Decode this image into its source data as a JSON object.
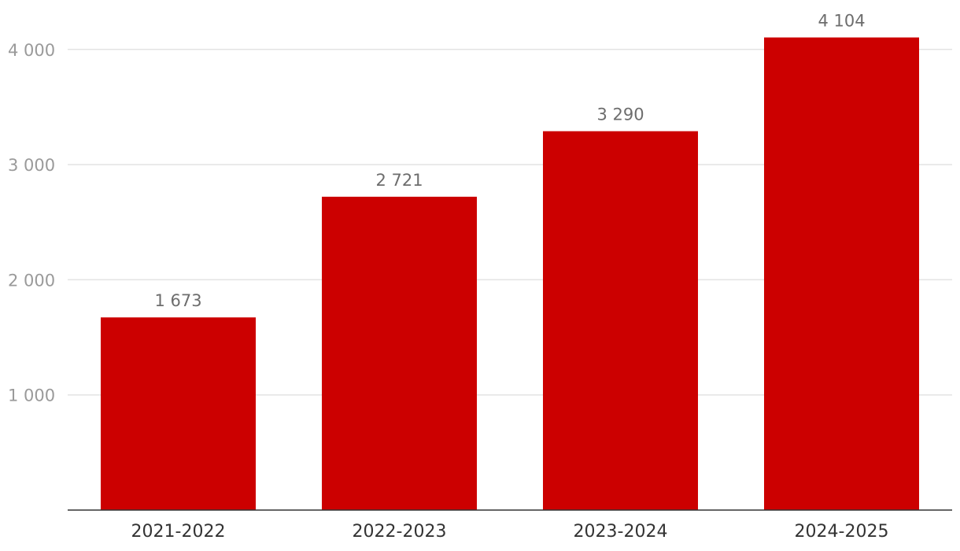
{
  "chart_data": {
    "type": "bar",
    "categories": [
      "2021-2022",
      "2022-2023",
      "2023-2024",
      "2024-2025"
    ],
    "values": [
      1673,
      2721,
      3290,
      4104
    ],
    "value_labels": [
      "1 673",
      "2 721",
      "3 290",
      "4 104"
    ],
    "y_ticks": [
      1000,
      2000,
      3000,
      4000
    ],
    "y_tick_labels": [
      "1 000",
      "2 000",
      "3 000",
      "4 000"
    ],
    "ylim": [
      0,
      4200
    ],
    "title": "",
    "xlabel": "",
    "ylabel": "",
    "grid": true,
    "legend": "none",
    "bar_color": "#cc0000"
  }
}
